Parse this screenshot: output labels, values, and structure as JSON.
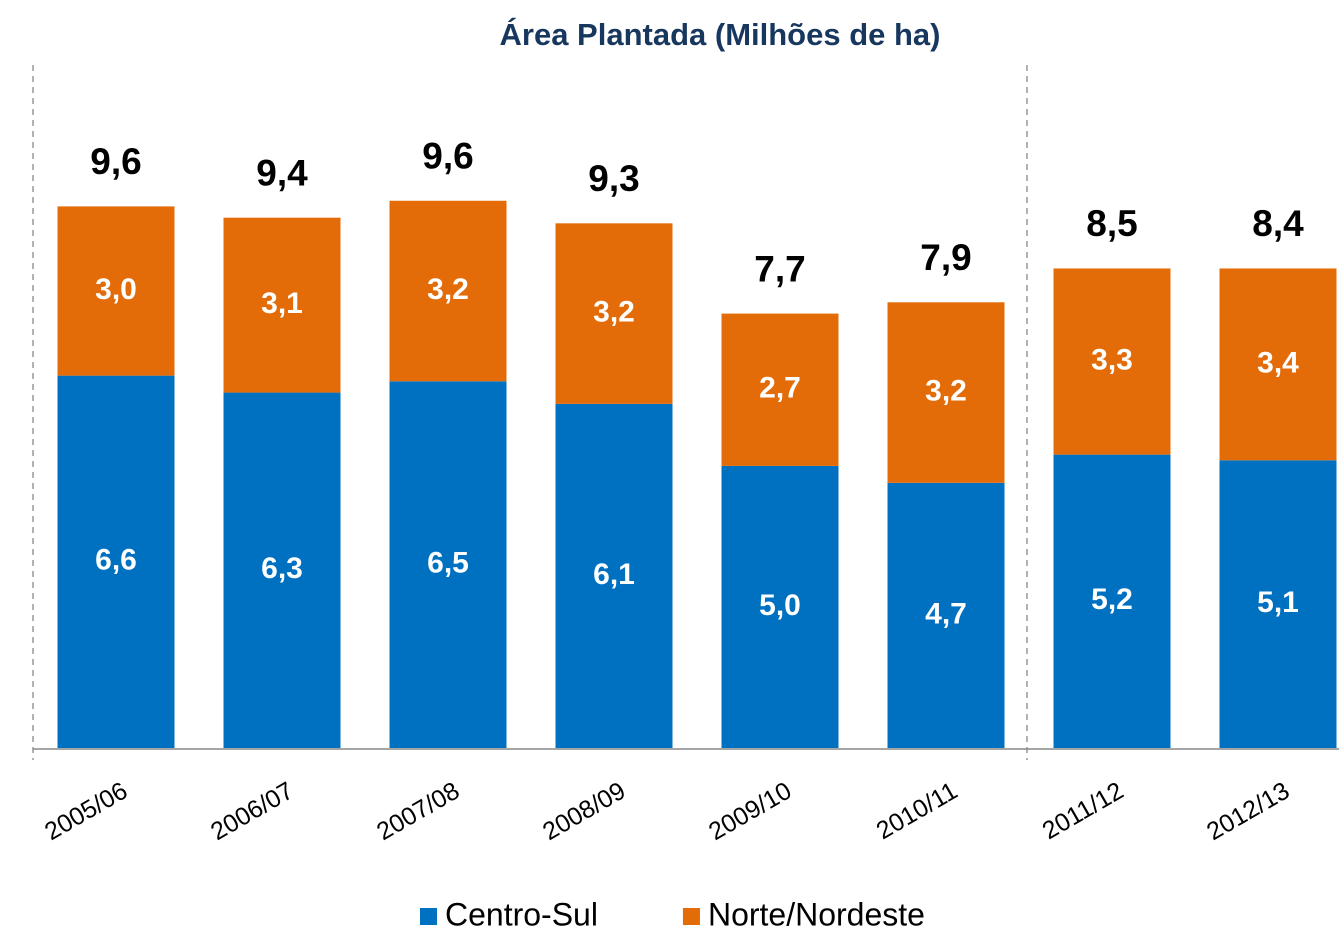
{
  "chart_data": {
    "type": "stacked_bar",
    "title": "Área Plantada (Milhões de ha)",
    "categories": [
      "2005/06",
      "2006/07",
      "2007/08",
      "2008/09",
      "2009/10",
      "2010/11",
      "2011/12",
      "2012/13"
    ],
    "series": [
      {
        "name": "Centro-Sul",
        "color": "#0070c0",
        "values": [
          6.6,
          6.3,
          6.5,
          6.1,
          5.0,
          4.7,
          5.2,
          5.1
        ],
        "value_labels": [
          "6,6",
          "6,3",
          "6,5",
          "6,1",
          "5,0",
          "4,7",
          "5,2",
          "5,1"
        ]
      },
      {
        "name": "Norte/Nordeste",
        "color": "#e36c09",
        "values": [
          3.0,
          3.1,
          3.2,
          3.2,
          2.7,
          3.2,
          3.3,
          3.4
        ],
        "value_labels": [
          "3,0",
          "3,1",
          "3,2",
          "3,2",
          "2,7",
          "3,2",
          "3,3",
          "3,4"
        ]
      }
    ],
    "totals": [
      9.6,
      9.4,
      9.6,
      9.3,
      7.7,
      7.9,
      8.5,
      8.4
    ],
    "total_labels": [
      "9,6",
      "9,4",
      "9,6",
      "9,3",
      "7,7",
      "7,9",
      "8,5",
      "8,4"
    ],
    "ylim": [
      0,
      12
    ],
    "legend": "bottom"
  }
}
